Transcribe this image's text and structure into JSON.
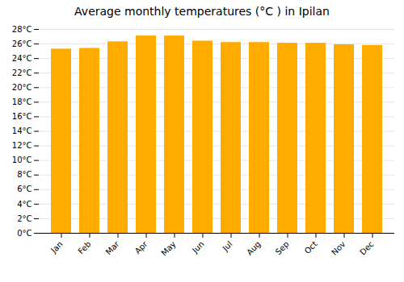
{
  "chart_data": {
    "type": "bar",
    "title": "Average monthly temperatures (°C ) in Ipilan",
    "categories": [
      "Jan",
      "Feb",
      "Mar",
      "Apr",
      "May",
      "Jun",
      "Jul",
      "Aug",
      "Sep",
      "Oct",
      "Nov",
      "Dec"
    ],
    "values": [
      25.3,
      25.4,
      26.3,
      27.1,
      27.1,
      26.4,
      26.2,
      26.2,
      26.1,
      26.1,
      25.9,
      25.8
    ],
    "color": "#FFAB00",
    "ylim": [
      0,
      28
    ],
    "yticks": [
      {
        "value": 0,
        "label": "0°C"
      },
      {
        "value": 2,
        "label": "2°C"
      },
      {
        "value": 4,
        "label": "4°C"
      },
      {
        "value": 6,
        "label": "6°C"
      },
      {
        "value": 8,
        "label": "8°C"
      },
      {
        "value": 10,
        "label": "10°C"
      },
      {
        "value": 12,
        "label": "12°C"
      },
      {
        "value": 14,
        "label": "14°C"
      },
      {
        "value": 16,
        "label": "16°C"
      },
      {
        "value": 18,
        "label": "18°C"
      },
      {
        "value": 20,
        "label": "20°C"
      },
      {
        "value": 22,
        "label": "22°C"
      },
      {
        "value": 24,
        "label": "24°C"
      },
      {
        "value": 26,
        "label": "26°C"
      },
      {
        "value": 28,
        "label": "28°C"
      }
    ],
    "grid": true
  }
}
